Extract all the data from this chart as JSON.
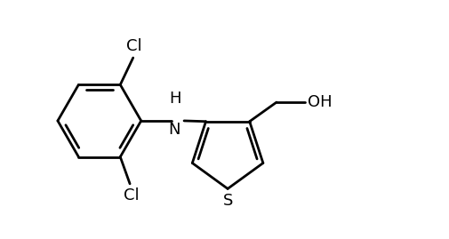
{
  "background_color": "#ffffff",
  "line_color": "#000000",
  "line_width": 2.0,
  "font_size": 13,
  "figsize": [
    5.05,
    2.69
  ],
  "dpi": 100,
  "xlim": [
    0.2,
    7.2
  ],
  "ylim": [
    0.0,
    3.2
  ]
}
